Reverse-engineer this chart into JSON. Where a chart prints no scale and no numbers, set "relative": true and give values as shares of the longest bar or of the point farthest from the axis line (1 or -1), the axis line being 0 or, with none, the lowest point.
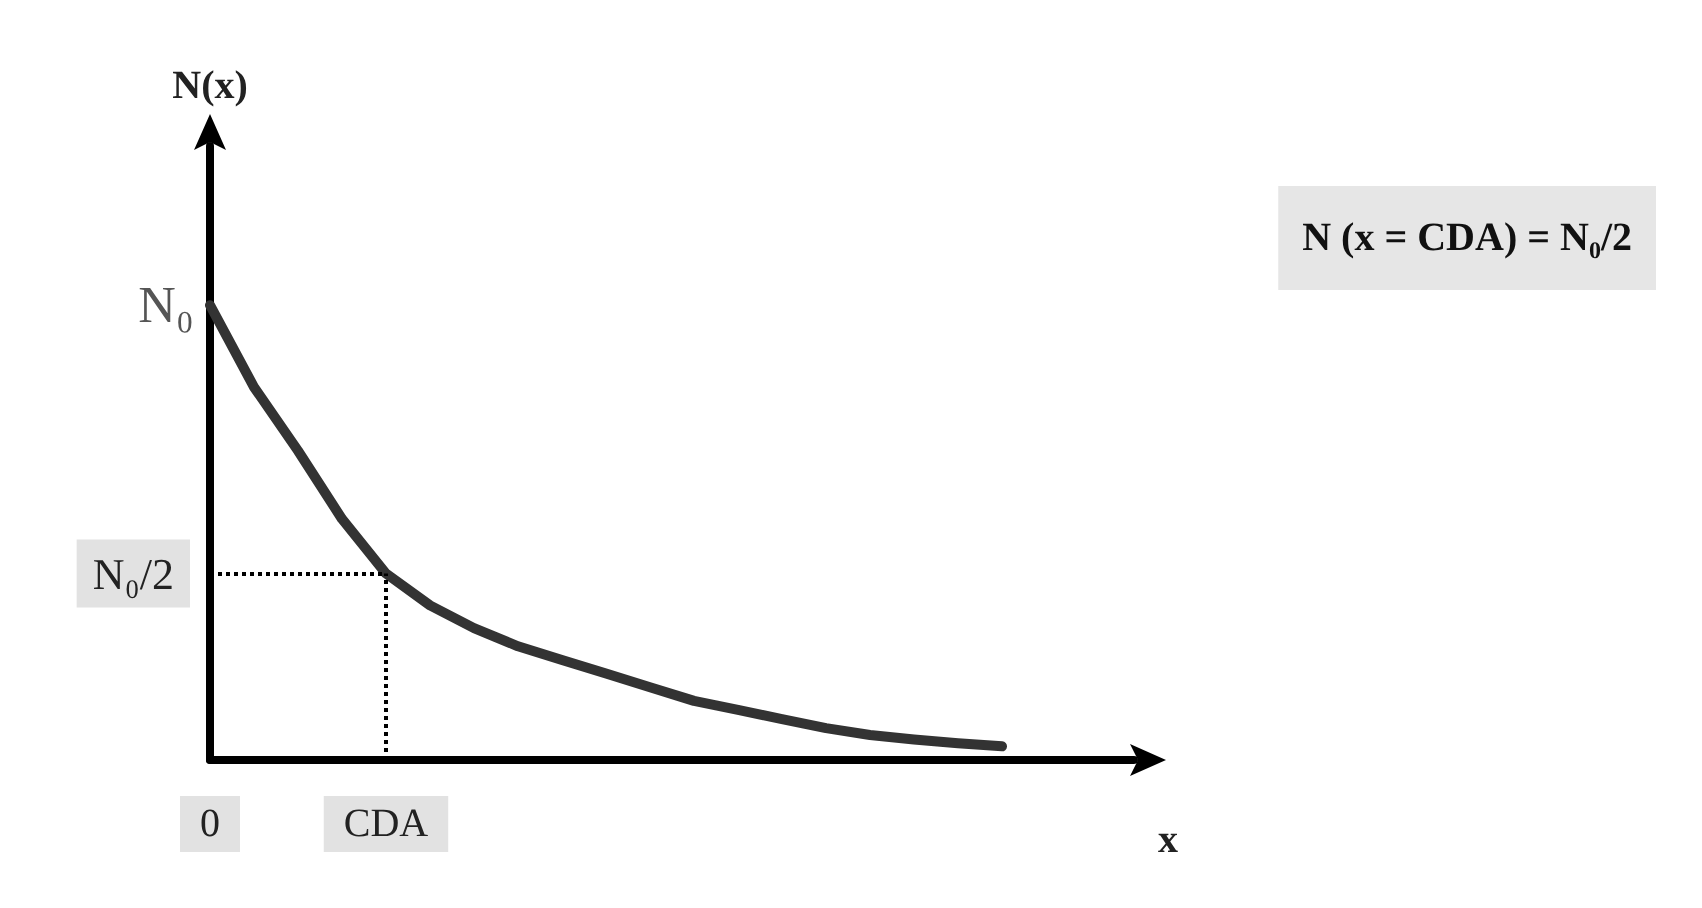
{
  "chart_data": {
    "type": "line",
    "relative": true,
    "xlabel": "x",
    "ylabel": "N(x)",
    "categories": [
      "0",
      null,
      null,
      null,
      "CDA",
      null,
      null,
      null,
      null,
      null,
      null,
      null,
      null,
      null,
      null,
      null,
      null,
      null,
      null,
      null,
      null,
      null
    ],
    "series": [
      {
        "color": "#333333",
        "values": [
          1,
          0.82,
          0.68,
          0.53,
          0.41,
          0.34,
          0.29,
          0.25,
          0.22,
          0.19,
          0.16,
          0.13,
          0.11,
          0.09,
          0.07,
          0.055,
          0.045,
          0.037,
          0.03,
          null,
          null,
          null
        ]
      }
    ],
    "ref_lines": [
      {
        "axis": "y",
        "value": 0.41,
        "label": "N₀/2",
        "line_style": "dotted",
        "color": "#000000"
      },
      {
        "axis": "x",
        "value": "CDA",
        "line_style": "dotted",
        "color": "#000000"
      }
    ],
    "annotations": [
      {
        "text": "N₀",
        "x": "0",
        "y": 1
      },
      "N (x = CDA) = N₀/2"
    ],
    "grid": false,
    "marker": "none",
    "line_style": "solid"
  }
}
